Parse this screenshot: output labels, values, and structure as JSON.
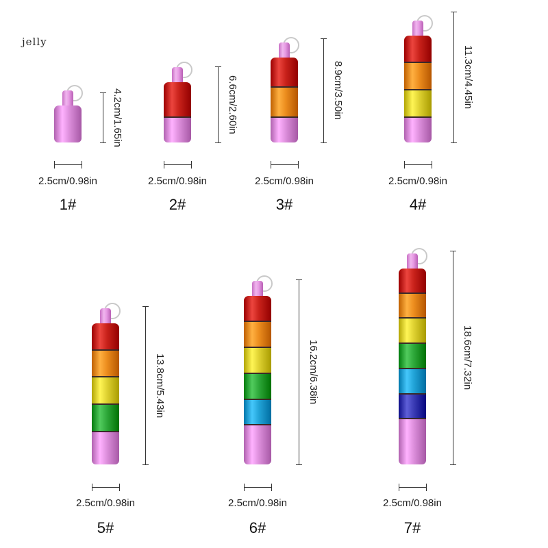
{
  "brand": "jelly",
  "colors": {
    "pink": "#dd8fdc",
    "red": "#c9221b",
    "orange": "#ec8d1e",
    "yellow": "#dfd232",
    "green": "#2ea83a",
    "cyan": "#22a4d8",
    "blue": "#3b3cb5"
  },
  "products": [
    {
      "number": "1#",
      "height_label": "4.2cm/1.65in",
      "width_label": "2.5cm/0.98in",
      "segments": []
    },
    {
      "number": "2#",
      "height_label": "6.6cm/2.60in",
      "width_label": "2.5cm/0.98in",
      "segments": [
        "red"
      ]
    },
    {
      "number": "3#",
      "height_label": "8.9cm/3.50in",
      "width_label": "2.5cm/0.98in",
      "segments": [
        "red",
        "orange"
      ]
    },
    {
      "number": "4#",
      "height_label": "11.3cm/4.45in",
      "width_label": "2.5cm/0.98in",
      "segments": [
        "red",
        "orange",
        "yellow"
      ]
    },
    {
      "number": "5#",
      "height_label": "13.8cm/5.43in",
      "width_label": "2.5cm/0.98in",
      "segments": [
        "red",
        "orange",
        "yellow",
        "green"
      ]
    },
    {
      "number": "6#",
      "height_label": "16.2cm/6.38in",
      "width_label": "2.5cm/0.98in",
      "segments": [
        "red",
        "orange",
        "yellow",
        "green",
        "cyan"
      ]
    },
    {
      "number": "7#",
      "height_label": "18.6cm/7.32in",
      "width_label": "2.5cm/0.98in",
      "segments": [
        "red",
        "orange",
        "yellow",
        "green",
        "cyan",
        "blue"
      ]
    }
  ]
}
